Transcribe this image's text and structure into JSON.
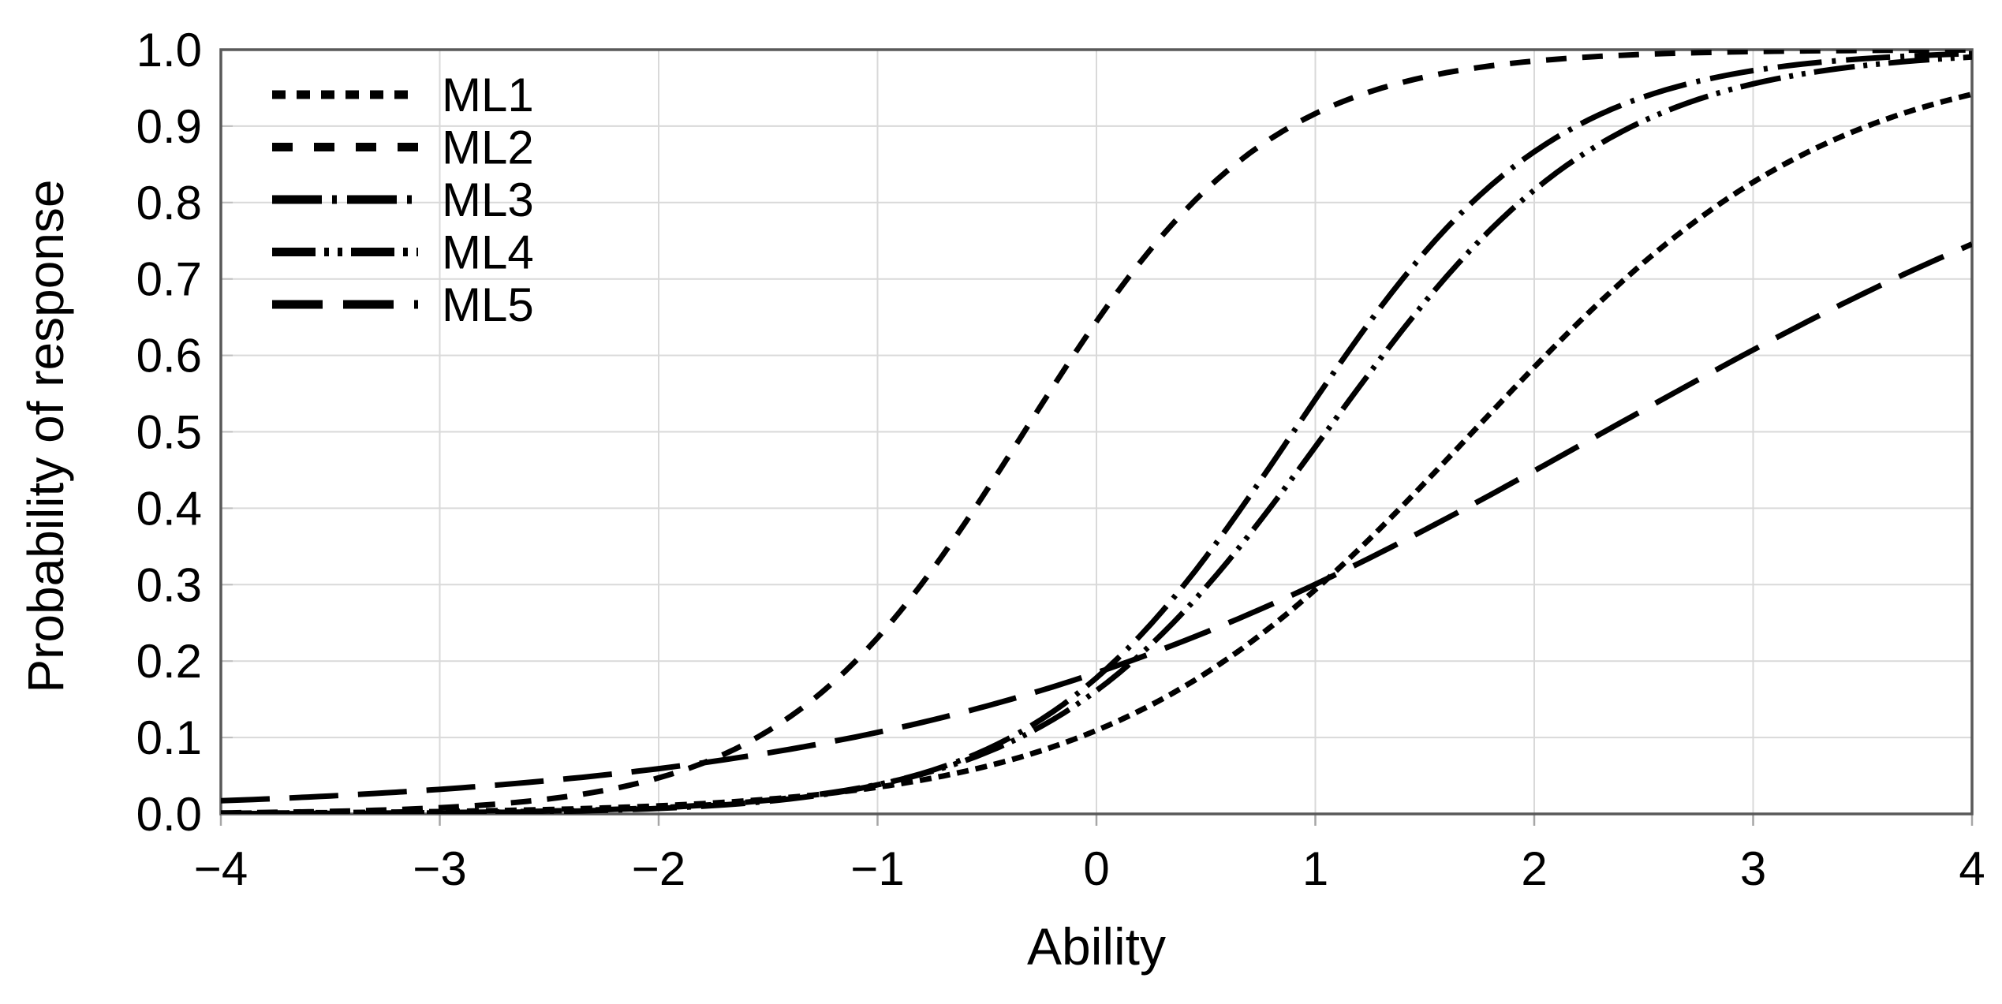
{
  "chart": {
    "xlabel": "Ability",
    "ylabel": "Probability of response",
    "background": "#ffffff",
    "plot_border_color": "#595959",
    "gridline_color": "#d9d9d9",
    "tick_color": "#a6a6a6",
    "text_color": "#000000",
    "curve_color": "#000000"
  },
  "chart_data": {
    "type": "line",
    "title": "",
    "xlabel": "Ability",
    "ylabel": "Probability of response",
    "xlim": [
      -4,
      4
    ],
    "ylim": [
      0,
      1
    ],
    "x_ticks": [
      {
        "label": "−4",
        "value": -4
      },
      {
        "label": "−3",
        "value": -3
      },
      {
        "label": "−2",
        "value": -2
      },
      {
        "label": "−1",
        "value": -1
      },
      {
        "label": "0",
        "value": 0
      },
      {
        "label": "1",
        "value": 1
      },
      {
        "label": "2",
        "value": 2
      },
      {
        "label": "3",
        "value": 3
      },
      {
        "label": "4",
        "value": 4
      }
    ],
    "y_ticks": [
      {
        "label": "0.0",
        "value": 0.0
      },
      {
        "label": "0.1",
        "value": 0.1
      },
      {
        "label": "0.2",
        "value": 0.2
      },
      {
        "label": "0.3",
        "value": 0.3
      },
      {
        "label": "0.4",
        "value": 0.4
      },
      {
        "label": "0.5",
        "value": 0.5
      },
      {
        "label": "0.6",
        "value": 0.6
      },
      {
        "label": "0.7",
        "value": 0.7
      },
      {
        "label": "0.8",
        "value": 0.8
      },
      {
        "label": "0.9",
        "value": 0.9
      },
      {
        "label": "1.0",
        "value": 1.0
      }
    ],
    "grid": true,
    "legend_position": "top-left",
    "x_sample": [
      -4,
      -3,
      -2,
      -1,
      0,
      1,
      2,
      3,
      4
    ],
    "series": [
      {
        "name": "ML1",
        "line_style": "short-dash",
        "color": "#000000",
        "model": "logistic",
        "a": 1.22,
        "b": 1.72,
        "values": [
          0.001,
          0.003,
          0.011,
          0.035,
          0.109,
          0.294,
          0.585,
          0.827,
          0.942
        ]
      },
      {
        "name": "ML2",
        "line_style": "medium-dash",
        "color": "#000000",
        "model": "logistic",
        "a": 1.8,
        "b": -0.33,
        "values": [
          0.001,
          0.008,
          0.047,
          0.23,
          0.644,
          0.916,
          0.985,
          0.998,
          1.0
        ]
      },
      {
        "name": "ML3",
        "line_style": "dash-dot",
        "color": "#000000",
        "model": "logistic",
        "a": 1.7,
        "b": 0.9,
        "values": [
          0.0,
          0.001,
          0.007,
          0.038,
          0.178,
          0.542,
          0.866,
          0.973,
          0.995
        ]
      },
      {
        "name": "ML4",
        "line_style": "dash-dot-dot",
        "color": "#000000",
        "model": "logistic",
        "a": 1.57,
        "b": 1.05,
        "values": [
          0.0,
          0.002,
          0.008,
          0.039,
          0.161,
          0.48,
          0.816,
          0.955,
          0.99
        ]
      },
      {
        "name": "ML5",
        "line_style": "long-dash",
        "color": "#000000",
        "model": "logistic",
        "a": 0.64,
        "b": 2.32,
        "values": [
          0.017,
          0.032,
          0.059,
          0.107,
          0.185,
          0.3,
          0.449,
          0.607,
          0.746
        ]
      }
    ]
  }
}
